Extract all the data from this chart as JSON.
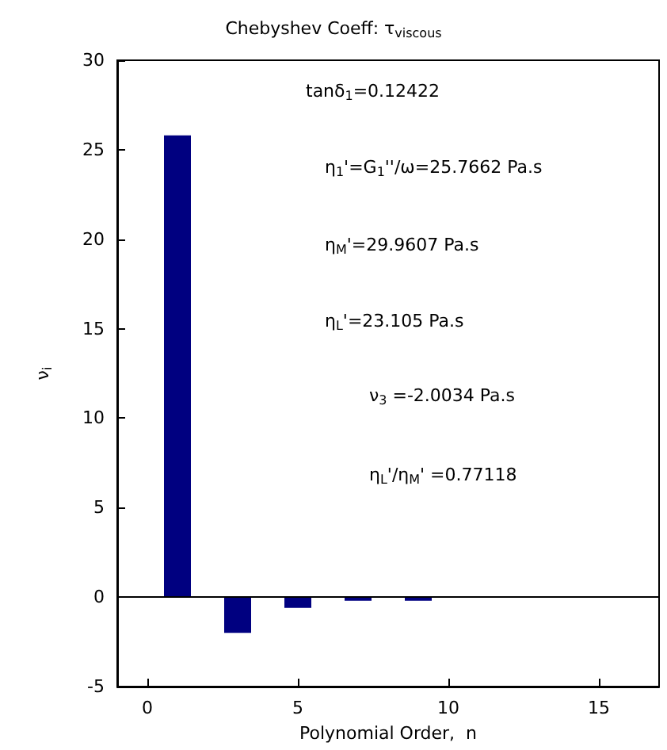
{
  "chart_data": {
    "type": "bar",
    "title": "Chebyshev Coeff: τ$_{viscous}$",
    "xlabel": "Polynomial Order,  n",
    "ylabel": "ν$_{i}$",
    "x": [
      1,
      3,
      5,
      7,
      9
    ],
    "values": [
      25.8,
      -2.0,
      -0.6,
      -0.2,
      -0.2
    ],
    "color": "#000080",
    "xlim": [
      -1,
      17
    ],
    "xticks": [
      0,
      5,
      10,
      15
    ],
    "ylim": [
      -5,
      30
    ],
    "yticks": [
      -5,
      0,
      5,
      10,
      15,
      20,
      25,
      30
    ],
    "grid": false,
    "ref_lines": [
      {
        "axis": "y",
        "value": 0,
        "color": "#000000"
      }
    ],
    "annotations": [
      "tanδ$_{1}$=0.12422",
      "η$_{1}$'=G$_{1}$''/ω=25.7662 Pa.s",
      "η$_{M}$'=29.9607 Pa.s",
      "η$_{L}$'=23.105 Pa.s",
      "ν$_{3}$ =-2.0034 Pa.s",
      "η$_{L}$'/η$_{M}$' =0.77118"
    ]
  }
}
